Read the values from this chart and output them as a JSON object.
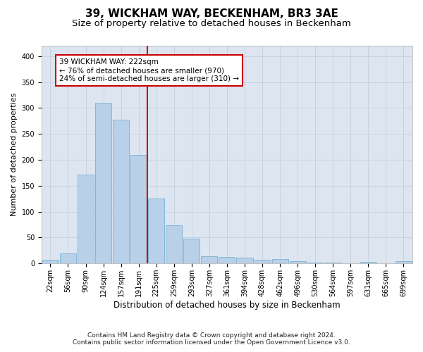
{
  "title": "39, WICKHAM WAY, BECKENHAM, BR3 3AE",
  "subtitle": "Size of property relative to detached houses in Beckenham",
  "xlabel": "Distribution of detached houses by size in Beckenham",
  "ylabel": "Number of detached properties",
  "footnote1": "Contains HM Land Registry data © Crown copyright and database right 2024.",
  "footnote2": "Contains public sector information licensed under the Open Government Licence v3.0.",
  "bar_labels": [
    "22sqm",
    "56sqm",
    "90sqm",
    "124sqm",
    "157sqm",
    "191sqm",
    "225sqm",
    "259sqm",
    "293sqm",
    "327sqm",
    "361sqm",
    "394sqm",
    "428sqm",
    "462sqm",
    "496sqm",
    "530sqm",
    "564sqm",
    "597sqm",
    "631sqm",
    "665sqm",
    "699sqm"
  ],
  "bar_values": [
    7,
    20,
    172,
    310,
    277,
    210,
    125,
    74,
    48,
    14,
    13,
    11,
    7,
    8,
    5,
    2,
    2,
    0,
    3,
    0,
    4
  ],
  "bar_color": "#b8d0e8",
  "bar_edge_color": "#7aafd4",
  "property_line_label": "39 WICKHAM WAY: 222sqm",
  "annotation_line1": "← 76% of detached houses are smaller (970)",
  "annotation_line2": "24% of semi-detached houses are larger (310) →",
  "annotation_box_color": "#ffffff",
  "annotation_box_edge": "#cc0000",
  "vline_color": "#cc0000",
  "vline_x_index": 6,
  "ylim": [
    0,
    420
  ],
  "yticks": [
    0,
    50,
    100,
    150,
    200,
    250,
    300,
    350,
    400
  ],
  "bg_color": "#dde6f0",
  "title_fontsize": 11,
  "subtitle_fontsize": 9.5,
  "xlabel_fontsize": 8.5,
  "ylabel_fontsize": 8,
  "tick_fontsize": 7,
  "annot_fontsize": 7.5,
  "footnote_fontsize": 6.5
}
